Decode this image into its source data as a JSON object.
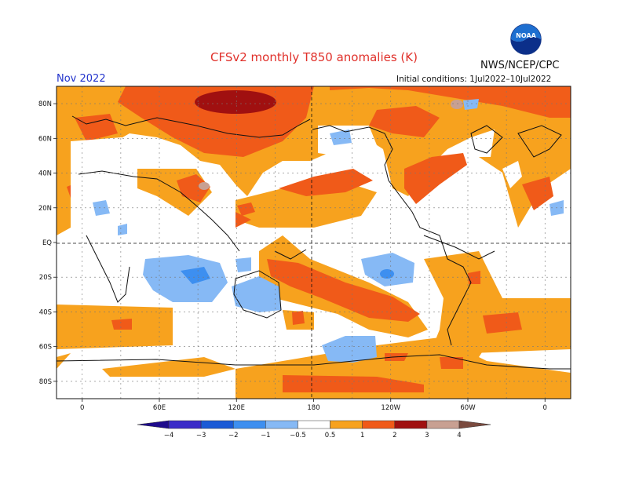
{
  "header": {
    "title": "CFSv2 monthly T850 anomalies (K)",
    "agency": "NWS/NCEP/CPC",
    "month": "Nov 2022",
    "initial_conditions": "Initial conditions: 1Jul2022–10Jul2022",
    "logo_text": "NOAA"
  },
  "chart_data": {
    "type": "heatmap",
    "title": "CFSv2 monthly T850 anomalies (K)",
    "units": "K",
    "valid_month": "Nov 2022",
    "lat_ticks": [
      "80N",
      "60N",
      "40N",
      "20N",
      "EQ",
      "20S",
      "40S",
      "60S",
      "80S"
    ],
    "lon_ticks": [
      "0",
      "60E",
      "120E",
      "180",
      "120W",
      "60W",
      "0"
    ],
    "lon_range": [
      -20,
      380
    ],
    "lat_range": [
      -90,
      90
    ],
    "grid": "dotted",
    "colorbar": {
      "labels": [
        "−4",
        "−3",
        "−2",
        "−1",
        "−0.5",
        "0.5",
        "1",
        "2",
        "3",
        "4"
      ],
      "bins": [
        {
          "range": "< -4",
          "color": "#1e0b8c"
        },
        {
          "range": "-4 to -3",
          "color": "#3a2bc8"
        },
        {
          "range": "-3 to -2",
          "color": "#1a5ad6"
        },
        {
          "range": "-2 to -1",
          "color": "#3d8ff0"
        },
        {
          "range": "-1 to -0.5",
          "color": "#86b9f5"
        },
        {
          "range": "-0.5 to 0.5",
          "color": "#ffffff"
        },
        {
          "range": "0.5 to 1",
          "color": "#f7a21e"
        },
        {
          "range": "1 to 2",
          "color": "#f05a19"
        },
        {
          "range": "2 to 3",
          "color": "#a01010"
        },
        {
          "range": "3 to 4",
          "color": "#c8a092"
        },
        {
          "range": "> 4",
          "color": "#7a4a3e"
        }
      ]
    },
    "features": [
      {
        "region": "Arctic / northern Eurasia",
        "anomaly_bin": "0.5 to 1",
        "peak_bin": "2 to 3"
      },
      {
        "region": "Northern Siberia",
        "anomaly_bin": "2 to 3"
      },
      {
        "region": "Tibetan Plateau",
        "anomaly_bin": "1 to 2",
        "peak_bin": "3 to 4"
      },
      {
        "region": "North Pacific (~35N)",
        "anomaly_bin": "1 to 2"
      },
      {
        "region": "Eastern North America",
        "anomaly_bin": "1 to 2"
      },
      {
        "region": "South Pacific diagonal band",
        "anomaly_bin": "1 to 2"
      },
      {
        "region": "South Atlantic (~40S)",
        "anomaly_bin": "1 to 2"
      },
      {
        "region": "Southern Indian Ocean (~25S)",
        "anomaly_bin": "-1 to -0.5",
        "peak_bin": "-2 to -1"
      },
      {
        "region": "Australia",
        "anomaly_bin": "-1 to -0.5"
      },
      {
        "region": "South Pacific (~45S, 150W)",
        "anomaly_bin": "-1 to -0.5"
      },
      {
        "region": "Southern Ocean belt",
        "anomaly_bin": "0.5 to 1"
      }
    ]
  }
}
